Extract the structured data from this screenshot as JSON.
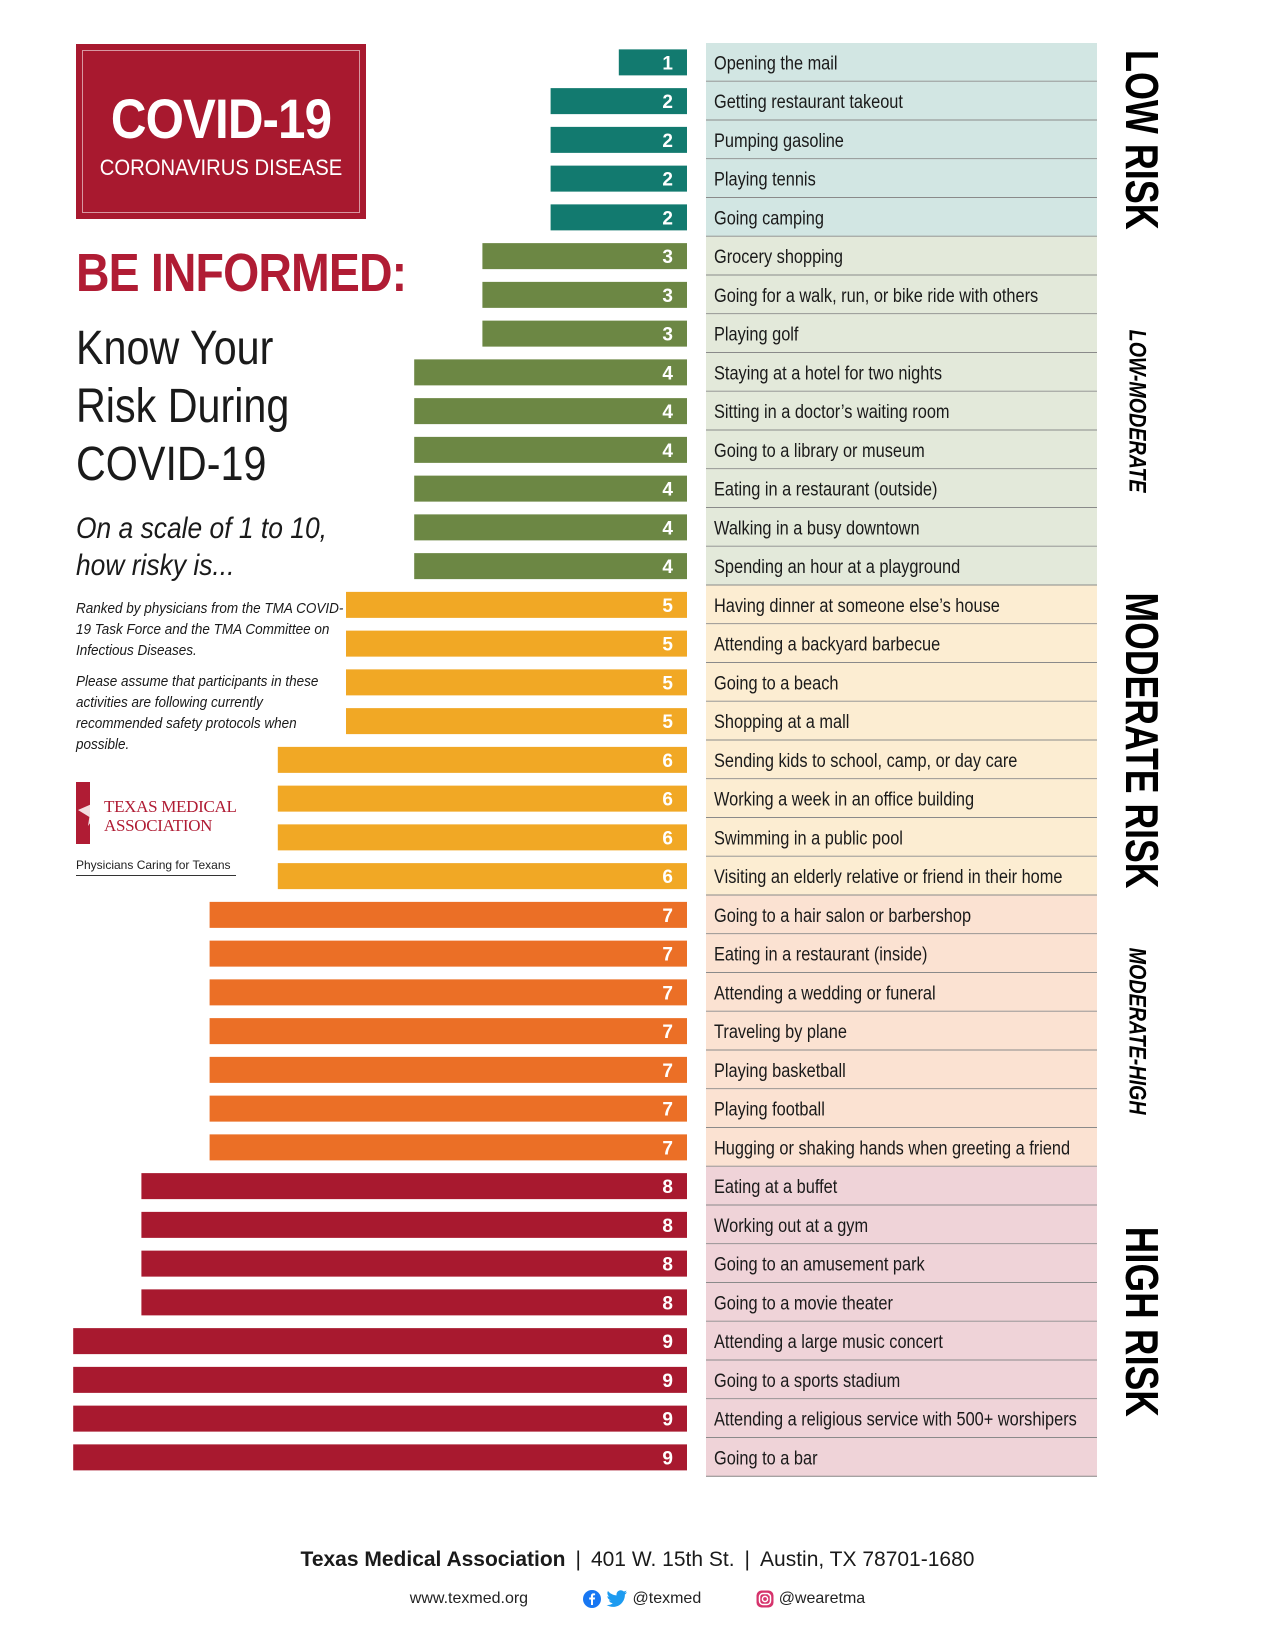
{
  "badge": {
    "title": "COVID-19",
    "subtitle": "CORONAVIRUS DISEASE"
  },
  "headline": "BE INFORMED:",
  "subheadline_lines": [
    "Know Your",
    "Risk During",
    "COVID-19"
  ],
  "question_lines": [
    "On a scale of 1 to 10,",
    "how risky is..."
  ],
  "note1": "Ranked by physicians from the TMA COVID-19 Task Force and the TMA Committee on Infectious Diseases.",
  "note2": "Please assume that  participants in these activities are following currently recommended safety protocols when possible.",
  "tma": {
    "name_line1": "Texas Medical",
    "name_line2": "Association",
    "tagline": "Physicians Caring for Texans"
  },
  "colors": {
    "risk1_2": "#127a6f",
    "risk3_4": "#6c8744",
    "risk5_6": "#f1a825",
    "risk7": "#eb6f26",
    "risk8_9": "#a8192f",
    "bg_low": "#d2e6e3",
    "bg_lowmod": "#e3e9da",
    "bg_mod": "#fcedd2",
    "bg_modhigh": "#fbe2d2",
    "bg_high": "#efd3d8",
    "accent": "#b01c34"
  },
  "chart_data": {
    "type": "bar",
    "orientation": "horizontal",
    "xlim": [
      0,
      9
    ],
    "categories": [
      "Opening the mail",
      "Getting restaurant takeout",
      "Pumping gasoline",
      "Playing tennis",
      "Going camping",
      "Grocery shopping",
      "Going for a walk, run, or bike ride with others",
      "Playing golf",
      "Staying at a hotel for two nights",
      "Sitting in a doctor’s waiting room",
      "Going to a library or museum",
      "Eating in a restaurant (outside)",
      "Walking in a busy downtown",
      "Spending an hour at a playground",
      "Having dinner at someone else’s house",
      "Attending a backyard barbecue",
      "Going to a beach",
      "Shopping at a mall",
      "Sending kids to school, camp, or day care",
      "Working a week in an office building",
      "Swimming in a public pool",
      "Visiting an elderly relative or friend in their home",
      "Going to a hair salon or barbershop",
      "Eating in a restaurant (inside)",
      "Attending a wedding or funeral",
      "Traveling by plane",
      "Playing basketball",
      "Playing football",
      "Hugging or shaking hands when greeting a friend",
      "Eating at a buffet",
      "Working out at a gym",
      "Going to an amusement park",
      "Going to a movie theater",
      "Attending a large music concert",
      "Going to a sports stadium",
      "Attending a religious service with 500+ worshipers",
      "Going to a bar"
    ],
    "values": [
      1,
      2,
      2,
      2,
      2,
      3,
      3,
      3,
      4,
      4,
      4,
      4,
      4,
      4,
      5,
      5,
      5,
      5,
      6,
      6,
      6,
      6,
      7,
      7,
      7,
      7,
      7,
      7,
      7,
      8,
      8,
      8,
      8,
      9,
      9,
      9,
      9
    ],
    "bands": [
      {
        "label": "LOW RISK",
        "style": "bold",
        "start": 0,
        "end": 4
      },
      {
        "label": "LOW-MODERATE",
        "style": "italic",
        "start": 5,
        "end": 13
      },
      {
        "label": "MODERATE RISK",
        "style": "bold",
        "start": 14,
        "end": 21
      },
      {
        "label": "MODERATE-HIGH",
        "style": "italic",
        "start": 22,
        "end": 28
      },
      {
        "label": "HIGH RISK",
        "style": "bold",
        "start": 29,
        "end": 36
      }
    ]
  },
  "footer": {
    "org": "Texas Medical Association",
    "address": "401 W. 15th St.",
    "city": "Austin, TX 78701-1680",
    "website": "www.texmed.org",
    "handle1": "@texmed",
    "handle2": "@wearetma"
  }
}
